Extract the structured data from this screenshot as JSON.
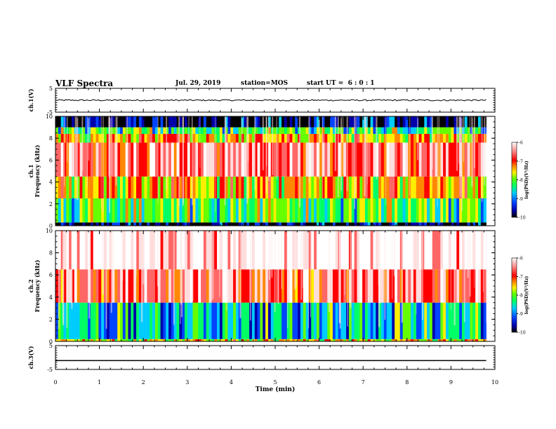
{
  "header": {
    "title": "VLF Spectra",
    "date": "Jul. 29, 2019",
    "station": "station=MOS",
    "start_time": "start UT =  6 : 0 : 1"
  },
  "colors": {
    "spectrum_scale": [
      "#000000",
      "#0000aa",
      "#0044ff",
      "#00ccff",
      "#00ff66",
      "#66ff00",
      "#ffee00",
      "#ff8800",
      "#ff0000",
      "#ff6666",
      "#ffdddd",
      "#ffffff"
    ],
    "trace": "#000000"
  },
  "chart_data": [
    {
      "type": "line",
      "panel": "ch1-voltage",
      "ylabel": "ch.1(V)",
      "ylim": [
        -5,
        5
      ],
      "yticks": [
        "5",
        "-5"
      ],
      "x": [
        0,
        9.8
      ],
      "y": [
        0,
        0
      ],
      "note_level": "flat trace near 0 V with small noise"
    },
    {
      "type": "heatmap",
      "panel": "ch1-spectrogram",
      "ylabel": "ch.1\nFrequency (kHz)",
      "ylim": [
        0,
        10
      ],
      "yticks": [
        "0",
        "2",
        "4",
        "6",
        "8",
        "10"
      ],
      "xlim": [
        0,
        10
      ],
      "data_extent_min": 9.8,
      "colorbar": {
        "label": "log(PSD)(V²/Hz)",
        "range": [
          -10,
          -6
        ],
        "ticks": [
          "-6",
          "-7",
          "-8",
          "-9",
          "-10"
        ]
      },
      "bands": [
        {
          "freq_khz": [
            0,
            0.3
          ],
          "level": -10
        },
        {
          "freq_khz": [
            0.3,
            2.5
          ],
          "level": -8.5
        },
        {
          "freq_khz": [
            2.5,
            4.5
          ],
          "level": -7.8
        },
        {
          "freq_khz": [
            4.5,
            7.6
          ],
          "level": -6.8
        },
        {
          "freq_khz": [
            7.6,
            8.4
          ],
          "level": -7.8
        },
        {
          "freq_khz": [
            8.4,
            9.0
          ],
          "level": -8.5
        },
        {
          "freq_khz": [
            9.0,
            10
          ],
          "level": -10
        }
      ]
    },
    {
      "type": "heatmap",
      "panel": "ch2-spectrogram",
      "ylabel": "ch.2\nFrequency (kHz)",
      "ylim": [
        0,
        10
      ],
      "yticks": [
        "0",
        "2",
        "4",
        "6",
        "8",
        "10"
      ],
      "xlim": [
        0,
        10
      ],
      "data_extent_min": 9.8,
      "colorbar": {
        "label": "log(PSD)(V²/Hz)",
        "range": [
          -10,
          -6
        ],
        "ticks": [
          "-6",
          "-7",
          "-8",
          "-9",
          "-10"
        ]
      },
      "bands": [
        {
          "freq_khz": [
            0,
            0.2
          ],
          "level": -8.0
        },
        {
          "freq_khz": [
            0.2,
            3.5
          ],
          "level": -9.0
        },
        {
          "freq_khz": [
            3.5,
            6.5
          ],
          "level": -7.0
        },
        {
          "freq_khz": [
            6.5,
            10
          ],
          "level": -6.3
        }
      ]
    },
    {
      "type": "line",
      "panel": "ch3-voltage",
      "ylabel": "ch.3(V)",
      "ylim": [
        -5,
        5
      ],
      "yticks": [
        "5",
        "-5"
      ],
      "x": [
        0,
        9.8
      ],
      "y": [
        -1.3,
        -1.3
      ]
    }
  ],
  "x_axis": {
    "label": "Time (min)",
    "ticks": [
      "0",
      "1",
      "2",
      "3",
      "4",
      "5",
      "6",
      "7",
      "8",
      "9",
      "10"
    ],
    "range": [
      0,
      10
    ]
  }
}
